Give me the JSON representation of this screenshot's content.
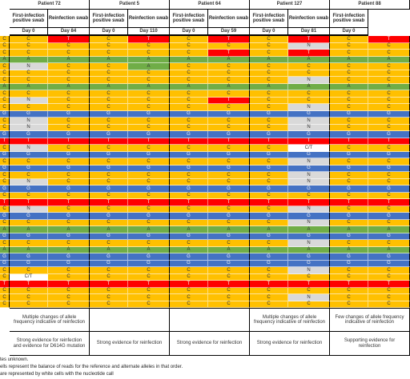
{
  "header": {
    "patients": [
      {
        "name": "Patient 72",
        "first": "First-infection positive swab",
        "reinfection": "Reinfection swab",
        "days": [
          "Day 0",
          "Day 84"
        ],
        "change_note": "Multiple changes of allele frequency indicative of reinfection",
        "evidence": "Strong evidence for reinfection and evidence for D614G mutation"
      },
      {
        "name": "Patient 5",
        "first": "First-infection positive swab",
        "reinfection": "Reinfection swab",
        "days": [
          "Day 0",
          "Day 110"
        ],
        "evidence": "Strong evidence for reinfection"
      },
      {
        "name": "Patient 64",
        "first": "First-infection positive swab",
        "reinfection": "Reinfection swab",
        "days": [
          "Day 0",
          "Day 59"
        ],
        "evidence": "Strong evidence for reinfection"
      },
      {
        "name": "Patient 127",
        "first": "First-infection positive swab",
        "reinfection": "Reinfection swab",
        "days": [
          "Day 0",
          "Day 81"
        ],
        "change_note": "Multiple changes of allele frequency indicative of reinfection",
        "evidence": "Strong evidence for reinfection"
      },
      {
        "name": "Patient 88",
        "first": "First-infection positive swab",
        "days": [
          "Day 0"
        ],
        "change_note": "Few changes of allele frequency indicative of reinfection",
        "evidence": "Supporting evidence for reinfection"
      }
    ]
  },
  "colors": {
    "A": "#70ad47",
    "C": "#ffc000",
    "G": "#4472c4",
    "T": "#ff0000",
    "N": "#d9d9d9"
  },
  "table": {
    "rows": [
      [
        "C",
        "C",
        "T",
        "C",
        "T",
        "C",
        "T",
        "C",
        "T",
        "C",
        "T"
      ],
      [
        "C",
        "C",
        "C",
        "C",
        "C",
        "C",
        "C",
        "C",
        "N",
        "C",
        "C"
      ],
      [
        "C",
        "C",
        "C",
        "C",
        "C",
        "C",
        "T",
        "C",
        "T",
        "C",
        "C"
      ],
      [
        "A",
        "A",
        "A",
        "A",
        "A",
        "A",
        "A",
        "A",
        "A",
        "A",
        "A"
      ],
      [
        "C",
        "N",
        "C",
        "C",
        "A",
        "C",
        "C",
        "C",
        "C",
        "C",
        "C"
      ],
      [
        "C",
        "C",
        "C",
        "C",
        "C",
        "C",
        "C",
        "C",
        "C",
        "C",
        "C"
      ],
      [
        "C",
        "C",
        "C",
        "C",
        "C",
        "C",
        "C",
        "C",
        "N",
        "C",
        "C"
      ],
      [
        "A",
        "A",
        "A",
        "A",
        "A",
        "A",
        "A",
        "A",
        "A",
        "A",
        "A"
      ],
      [
        "C",
        "C",
        "C",
        "C",
        "C",
        "C",
        "C",
        "C",
        "C",
        "C",
        "C"
      ],
      [
        "C",
        "N",
        "C",
        "C",
        "C",
        "C",
        "T",
        "C",
        "C",
        "C",
        "C"
      ],
      [
        "C",
        "C",
        "C",
        "C",
        "C",
        "C",
        "C",
        "C",
        "N",
        "C",
        "C"
      ],
      [
        "G",
        "G",
        "G",
        "G",
        "G",
        "G",
        "G",
        "G",
        "G",
        "G",
        "G"
      ],
      [
        "C",
        "N",
        "C",
        "C",
        "C",
        "C",
        "C",
        "C",
        "N",
        "C",
        "C"
      ],
      [
        "C",
        "N",
        "C",
        "C",
        "C",
        "C",
        "C",
        "C",
        "N",
        "C",
        "C"
      ],
      [
        "G",
        "G",
        "G",
        "G",
        "G",
        "G",
        "G",
        "G",
        "G",
        "G",
        "G"
      ],
      [
        "T",
        "T",
        "T",
        "T",
        "T",
        "T",
        "T",
        "T",
        "T",
        "T",
        "T"
      ],
      [
        "C",
        "N",
        "C",
        "C",
        "C",
        "C",
        "C",
        "C",
        "C/T",
        "C",
        "C"
      ],
      [
        "G",
        "G",
        "G",
        "G",
        "G",
        "G",
        "G",
        "G",
        "G",
        "G",
        "G"
      ],
      [
        "C",
        "C",
        "C",
        "C",
        "C",
        "C",
        "C",
        "C",
        "N",
        "C",
        "C"
      ],
      [
        "G",
        "G",
        "G",
        "G",
        "G",
        "G",
        "G",
        "G",
        "G",
        "G",
        "G"
      ],
      [
        "C",
        "C",
        "C",
        "C",
        "C",
        "C",
        "C",
        "C",
        "N",
        "C",
        "C"
      ],
      [
        "C",
        "N",
        "C",
        "C",
        "C",
        "C",
        "C",
        "C",
        "N",
        "C",
        "C"
      ],
      [
        "G",
        "G",
        "G",
        "G",
        "G",
        "G",
        "G",
        "G",
        "G",
        "G",
        "G"
      ],
      [
        "C",
        "C",
        "C",
        "C",
        "C",
        "C",
        "C",
        "C",
        "C",
        "C",
        "C"
      ],
      [
        "T",
        "T",
        "T",
        "T",
        "T",
        "T",
        "T",
        "T",
        "T",
        "T",
        "T"
      ],
      [
        "C",
        "N",
        "C",
        "C",
        "C",
        "C",
        "C",
        "C",
        "N",
        "C",
        "C"
      ],
      [
        "G",
        "G",
        "G",
        "G",
        "G",
        "G",
        "G",
        "G",
        "G",
        "G",
        "G"
      ],
      [
        "C",
        "C",
        "C",
        "C",
        "C",
        "C",
        "C",
        "C",
        "N",
        "C",
        "C"
      ],
      [
        "A",
        "A",
        "A",
        "A",
        "A",
        "A",
        "A",
        "A",
        "A",
        "A",
        "A"
      ],
      [
        "G",
        "G",
        "G",
        "G",
        "G",
        "G",
        "G",
        "G",
        "G",
        "G",
        "G"
      ],
      [
        "C",
        "C",
        "C",
        "C",
        "C",
        "C",
        "C",
        "C",
        "N",
        "C",
        "C"
      ],
      [
        "A",
        "A",
        "A",
        "A",
        "A",
        "A",
        "A",
        "A",
        "A",
        "A",
        "A"
      ],
      [
        "G",
        "G",
        "G",
        "G",
        "G",
        "G",
        "G",
        "G",
        "G",
        "G",
        "G"
      ],
      [
        "G",
        "G",
        "G",
        "G",
        "G",
        "G",
        "G",
        "G",
        "G",
        "G",
        "G"
      ],
      [
        "C",
        "C",
        "C",
        "C",
        "C",
        "C",
        "C",
        "C",
        "N",
        "C",
        "C"
      ],
      [
        "C",
        "C/T",
        "C",
        "C",
        "C",
        "C",
        "C",
        "C",
        "C",
        "C",
        "C"
      ],
      [
        "T",
        "T",
        "T",
        "T",
        "T",
        "T",
        "T",
        "T",
        "T",
        "T",
        "T"
      ],
      [
        "C",
        "C",
        "C",
        "C",
        "C",
        "C",
        "C",
        "C",
        "C",
        "C",
        "C"
      ],
      [
        "C",
        "C",
        "C",
        "C",
        "C",
        "C",
        "C",
        "C",
        "N",
        "C",
        "C"
      ],
      [
        "C",
        "C",
        "C",
        "C",
        "C",
        "C",
        "C",
        "C",
        "C",
        "C",
        "C"
      ]
    ]
  },
  "footnotes": [
    "tes unknown.",
    "ells represent the balance of reads for the reference and alternate alleles in that order.",
    "are represented by white cells with the nucleotide call"
  ]
}
